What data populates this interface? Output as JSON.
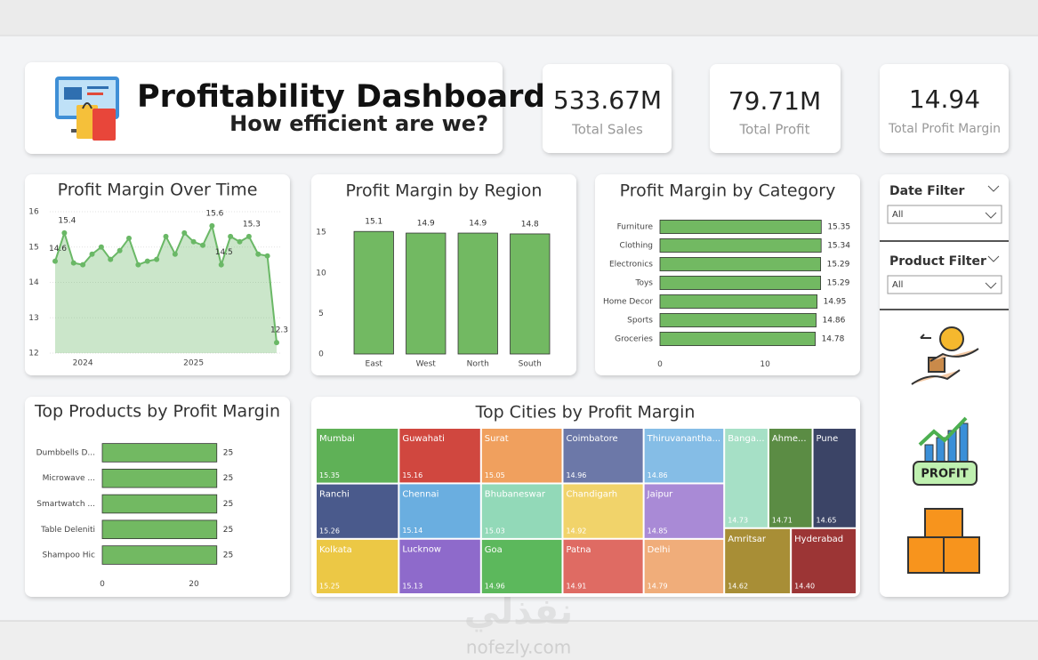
{
  "header": {
    "title": "Profitability Dashboard",
    "subtitle": "How efficient are we?"
  },
  "kpis": [
    {
      "value": "533.67M",
      "label": "Total Sales"
    },
    {
      "value": "79.71M",
      "label": "Total Profit"
    },
    {
      "value": "14.94",
      "label": "Total Profit Margin"
    }
  ],
  "filters": [
    {
      "title": "Date Filter",
      "selected": "All"
    },
    {
      "title": "Product Filter",
      "selected": "All"
    }
  ],
  "watermark": {
    "arabic": "نفذلي",
    "latin": "nofezly.com"
  },
  "chart_data": [
    {
      "type": "line",
      "title": "Profit Margin Over Time",
      "color": "#6ab866",
      "grid": true,
      "categories": [
        null,
        null,
        null,
        "2024",
        null,
        null,
        null,
        null,
        null,
        null,
        null,
        null,
        null,
        null,
        null,
        "2025",
        null,
        null,
        null,
        null,
        null,
        null,
        null,
        null,
        null
      ],
      "values": [
        14.6,
        15.4,
        14.55,
        14.5,
        14.8,
        15.0,
        14.65,
        14.9,
        15.25,
        14.5,
        14.6,
        14.65,
        15.3,
        14.8,
        15.4,
        15.15,
        15.05,
        15.6,
        14.5,
        15.3,
        15.15,
        15.3,
        14.8,
        14.75,
        12.3
      ],
      "value_labels": [
        "14.6",
        "15.4",
        null,
        null,
        null,
        null,
        null,
        null,
        null,
        null,
        null,
        null,
        null,
        null,
        null,
        null,
        null,
        "15.6",
        "14.5",
        null,
        null,
        "15.3",
        null,
        null,
        "12.3"
      ],
      "ylim": [
        12,
        16
      ],
      "yticks": [
        12,
        13,
        14,
        15,
        16
      ]
    },
    {
      "type": "bar",
      "title": "Profit Margin by Region",
      "color": "#72b962",
      "grid": false,
      "categories": [
        "East",
        "West",
        "North",
        "South"
      ],
      "values": [
        15.1,
        14.9,
        14.9,
        14.8
      ],
      "ylim": [
        0,
        16
      ],
      "yticks": [
        0,
        5,
        10,
        15
      ]
    },
    {
      "type": "bar",
      "orientation": "horizontal",
      "title": "Profit Margin by Category",
      "color": "#72b962",
      "grid": false,
      "categories": [
        "Furniture",
        "Clothing",
        "Electronics",
        "Toys",
        "Home Decor",
        "Sports",
        "Groceries"
      ],
      "values": [
        15.35,
        15.34,
        15.29,
        15.29,
        14.95,
        14.86,
        14.78
      ],
      "xlim": [
        0,
        16
      ],
      "xticks": [
        0,
        10
      ]
    },
    {
      "type": "bar",
      "orientation": "horizontal",
      "title": "Top Products by Profit Margin",
      "color": "#72b962",
      "grid": false,
      "categories": [
        "Dumbbells D...",
        "Microwave ...",
        "Smartwatch ...",
        "Table Deleniti",
        "Shampoo Hic"
      ],
      "values": [
        25,
        25,
        25,
        25,
        25
      ],
      "xlim": [
        0,
        25
      ],
      "xticks": [
        0,
        20
      ]
    },
    {
      "type": "treemap",
      "title": "Top Cities by Profit Margin",
      "categories": [
        "Mumbai",
        "Ranchi",
        "Kolkata",
        "Guwahati",
        "Chennai",
        "Lucknow",
        "Surat",
        "Bhubaneswar",
        "Goa",
        "Coimbatore",
        "Chandigarh",
        "Patna",
        "Thiruvanantha...",
        "Jaipur",
        "Delhi",
        "Banga...",
        "Ahme...",
        "Pune",
        "Amritsar",
        "Hyderabad"
      ],
      "values": [
        15.35,
        15.26,
        15.25,
        15.16,
        15.14,
        15.13,
        15.05,
        15.03,
        14.96,
        14.96,
        14.92,
        14.91,
        14.86,
        14.85,
        14.79,
        14.73,
        14.71,
        14.65,
        14.62,
        14.4
      ],
      "value_labels": [
        "15.35",
        "15.26",
        "15.25",
        "15.16",
        "15.14",
        "15.13",
        "15.05",
        "15.03",
        "14.96",
        "14.96",
        "14.92",
        "14.91",
        "14.86",
        "14.85",
        "14.79",
        "14.73",
        "14.71",
        "14.65",
        "14.62",
        "14.40"
      ],
      "colors": [
        "#5fb157",
        "#4a5a8c",
        "#ecc845",
        "#d0473f",
        "#6aaee0",
        "#8e6acb",
        "#f0a05e",
        "#92d9b8",
        "#5cb85c",
        "#6c78a8",
        "#f1d36a",
        "#df6b63",
        "#85bde6",
        "#a98ad6",
        "#f0ad7a",
        "#a6e0c6",
        "#5b8c44",
        "#3b4466",
        "#a88e36",
        "#9c3535"
      ]
    }
  ]
}
